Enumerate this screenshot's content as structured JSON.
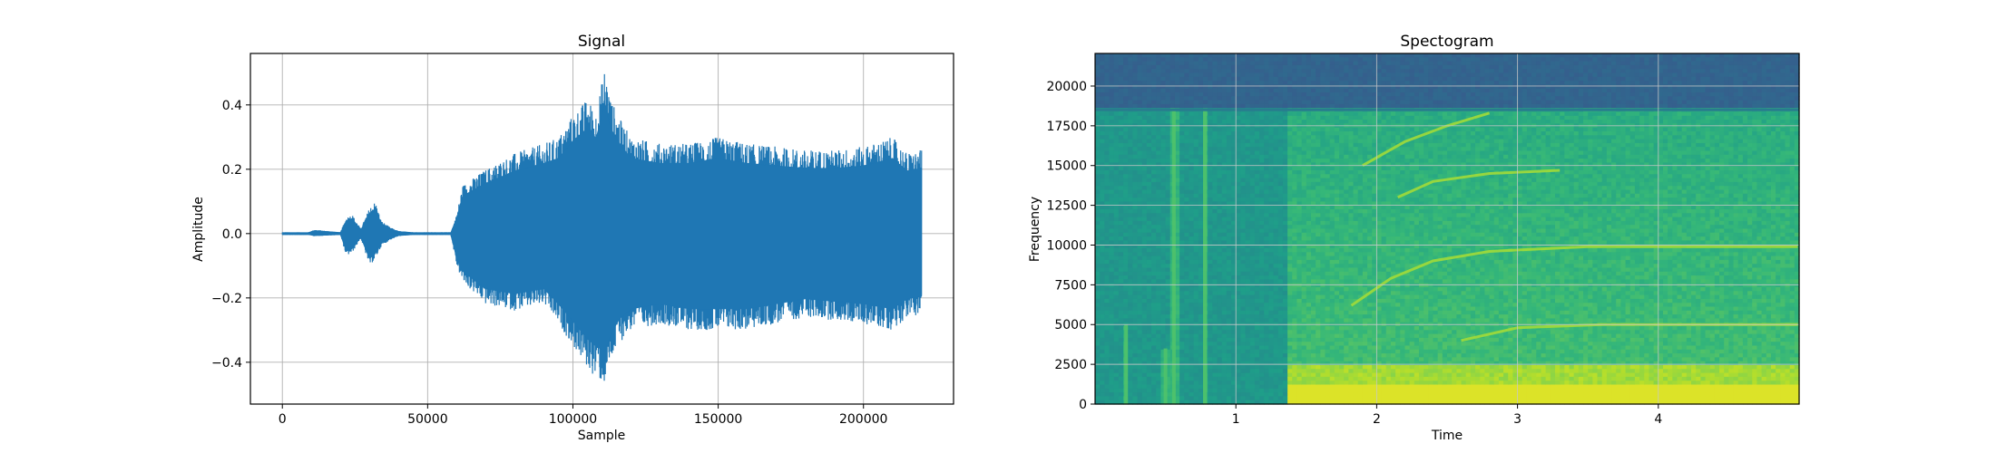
{
  "chart_data": [
    {
      "type": "line",
      "title": "Signal",
      "xlabel": "Sample",
      "ylabel": "Amplitude",
      "xlim": [
        -11000,
        231000
      ],
      "ylim": [
        -0.53,
        0.56
      ],
      "xticks": [
        0,
        50000,
        100000,
        150000,
        200000
      ],
      "xtick_labels": [
        "0",
        "50000",
        "100000",
        "150000",
        "200000"
      ],
      "yticks": [
        -0.4,
        -0.2,
        0.0,
        0.2,
        0.4
      ],
      "ytick_labels": [
        "−0.4",
        "−0.2",
        "0.0",
        "0.2",
        "0.4"
      ],
      "grid": true,
      "color": "#1f77b4",
      "envelope": {
        "x": [
          0,
          9000,
          11000,
          20000,
          22000,
          24000,
          27000,
          30000,
          32000,
          34000,
          37000,
          40000,
          45000,
          58000,
          60000,
          62000,
          70000,
          80000,
          90000,
          95000,
          100000,
          105000,
          108000,
          111000,
          113000,
          116000,
          120000,
          130000,
          140000,
          150000,
          160000,
          170000,
          180000,
          190000,
          200000,
          210000,
          215000,
          220000
        ],
        "upper": [
          0.004,
          0.004,
          0.012,
          0.004,
          0.05,
          0.06,
          0.015,
          0.08,
          0.1,
          0.04,
          0.02,
          0.008,
          0.004,
          0.004,
          0.06,
          0.15,
          0.2,
          0.25,
          0.28,
          0.3,
          0.37,
          0.42,
          0.38,
          0.52,
          0.42,
          0.36,
          0.3,
          0.28,
          0.28,
          0.3,
          0.28,
          0.27,
          0.26,
          0.26,
          0.27,
          0.3,
          0.25,
          0.26
        ],
        "lower": [
          -0.004,
          -0.004,
          -0.008,
          -0.004,
          -0.07,
          -0.06,
          -0.015,
          -0.1,
          -0.08,
          -0.04,
          -0.02,
          -0.008,
          -0.004,
          -0.004,
          -0.1,
          -0.15,
          -0.22,
          -0.24,
          -0.22,
          -0.28,
          -0.35,
          -0.42,
          -0.45,
          -0.47,
          -0.4,
          -0.34,
          -0.3,
          -0.28,
          -0.3,
          -0.3,
          -0.3,
          -0.28,
          -0.26,
          -0.27,
          -0.28,
          -0.3,
          -0.26,
          -0.25
        ]
      }
    },
    {
      "type": "heatmap",
      "title": "Spectogram",
      "xlabel": "Time",
      "ylabel": "Frequency",
      "xlim": [
        0,
        5.0
      ],
      "ylim": [
        0,
        22050
      ],
      "xticks": [
        1,
        2,
        3,
        4
      ],
      "xtick_labels": [
        "1",
        "2",
        "3",
        "4"
      ],
      "yticks": [
        0,
        2500,
        5000,
        7500,
        10000,
        12500,
        15000,
        17500,
        20000
      ],
      "ytick_labels": [
        "0",
        "2500",
        "5000",
        "7500",
        "10000",
        "12500",
        "15000",
        "17500",
        "20000"
      ],
      "grid": true,
      "colormap": "viridis",
      "features": {
        "noise_ceiling_hz": 18500,
        "onset_time": 1.38,
        "transients": [
          {
            "time": 0.22,
            "top_hz": 5000
          },
          {
            "time": 0.5,
            "top_hz": 3500
          },
          {
            "time": 0.56,
            "top_hz": 18500
          },
          {
            "time": 0.78,
            "top_hz": 18500
          }
        ],
        "harmonic_sweeps": [
          {
            "t": [
              1.82,
              2.1,
              2.4,
              2.8,
              3.5,
              4.99
            ],
            "hz": [
              6200,
              7900,
              9000,
              9600,
              9900,
              9900
            ]
          },
          {
            "t": [
              2.15,
              2.4,
              2.8,
              3.3
            ],
            "hz": [
              13000,
              14000,
              14500,
              14700
            ]
          },
          {
            "t": [
              1.9,
              2.2,
              2.5,
              2.8
            ],
            "hz": [
              15000,
              16500,
              17500,
              18300
            ]
          },
          {
            "t": [
              2.6,
              3.0,
              3.6,
              4.99
            ],
            "hz": [
              4000,
              4800,
              5000,
              5000
            ]
          }
        ],
        "low_band_hz": [
          0,
          1000
        ]
      }
    }
  ]
}
